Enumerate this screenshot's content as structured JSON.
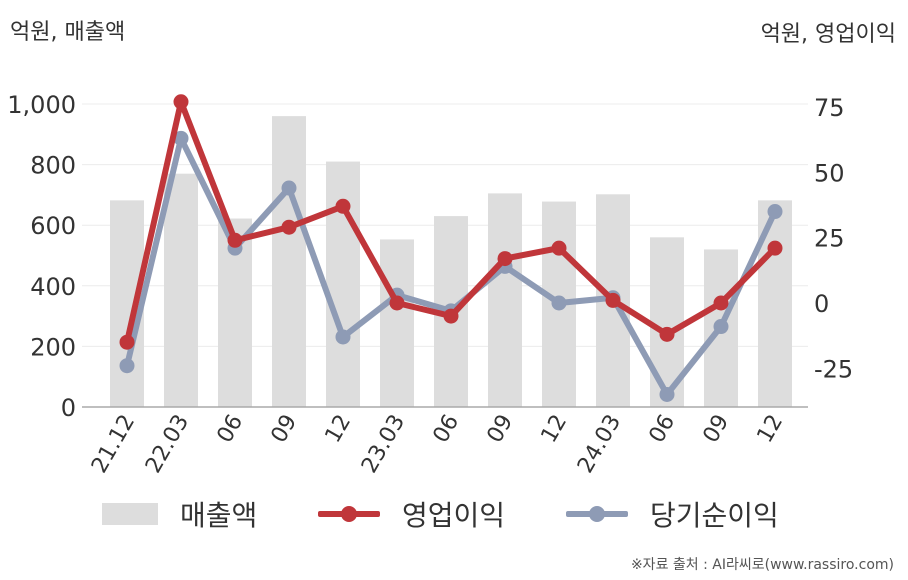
{
  "labels": {
    "left_unit": "억원, 매출액",
    "right_unit": "억원, 영업이익",
    "source": "※자료 출처 : AI라씨로(www.rassiro.com)"
  },
  "legend": [
    {
      "name": "매출액",
      "kind": "bar",
      "color": "#dddddd"
    },
    {
      "name": "영업이익",
      "kind": "line",
      "color": "#c0363a"
    },
    {
      "name": "당기순이익",
      "kind": "line",
      "color": "#8e9bb5"
    }
  ],
  "chart_data": {
    "type": "bar+line",
    "categories": [
      "21.12",
      "22.03",
      "06",
      "09",
      "12",
      "23.03",
      "06",
      "09",
      "12",
      "24.03",
      "06",
      "09",
      "12"
    ],
    "left_axis": {
      "ylim": [
        0,
        1000
      ],
      "ticks": [
        0,
        200,
        400,
        600,
        800,
        1000
      ],
      "tick_labels": [
        "0",
        "200",
        "400",
        "600",
        "800",
        "1,000"
      ]
    },
    "right_axis": {
      "ylim": [
        -40,
        77
      ],
      "ticks": [
        -25,
        0,
        25,
        50,
        75
      ],
      "tick_labels": [
        "-25",
        "0",
        "25",
        "50",
        "75"
      ]
    },
    "series": [
      {
        "name": "매출액",
        "type": "bar",
        "axis": "left",
        "color": "#dddddd",
        "values": [
          682,
          770,
          622,
          960,
          810,
          553,
          630,
          705,
          678,
          702,
          560,
          520,
          682
        ]
      },
      {
        "name": "영업이익",
        "type": "line",
        "axis": "right",
        "color": "#c0363a",
        "values": [
          -15,
          77,
          24,
          29,
          37,
          0,
          -5,
          17,
          21,
          1,
          -12,
          0,
          21
        ]
      },
      {
        "name": "당기순이익",
        "type": "line",
        "axis": "right",
        "color": "#8e9bb5",
        "values": [
          -24,
          63,
          21,
          44,
          -13,
          3,
          -3,
          14,
          0,
          2,
          -35,
          -9,
          35
        ]
      }
    ],
    "grid": true,
    "legend_position": "bottom"
  }
}
